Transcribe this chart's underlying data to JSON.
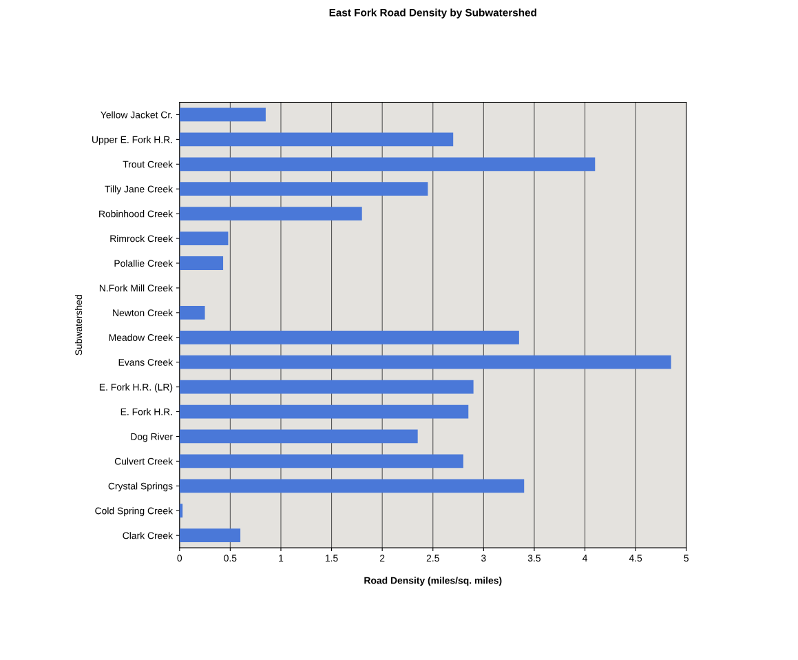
{
  "chart_data": {
    "type": "bar",
    "orientation": "horizontal",
    "title": "East Fork Road Density by Subwatershed",
    "xlabel": "Road Density (miles/sq. miles)",
    "ylabel": "Subwatershed",
    "categories": [
      "Yellow Jacket Cr.",
      "Upper E. Fork H.R.",
      "Trout Creek",
      "Tilly Jane Creek",
      "Robinhood Creek",
      "Rimrock Creek",
      "Polallie Creek",
      "N.Fork Mill Creek",
      "Newton Creek",
      "Meadow Creek",
      "Evans Creek",
      "E. Fork H.R. (LR)",
      "E. Fork H.R.",
      "Dog River",
      "Culvert Creek",
      "Crystal Springs",
      "Cold Spring Creek",
      "Clark Creek"
    ],
    "values": [
      0.85,
      2.7,
      4.1,
      2.45,
      1.8,
      0.48,
      0.43,
      0,
      0.25,
      3.35,
      4.85,
      2.9,
      2.85,
      2.35,
      2.8,
      3.4,
      0.03,
      0.6
    ],
    "color": "#4a78d8",
    "xlim": [
      0,
      5
    ],
    "xticks": [
      0,
      0.5,
      1,
      1.5,
      2,
      2.5,
      3,
      3.5,
      4,
      4.5,
      5
    ],
    "grid": "x"
  }
}
